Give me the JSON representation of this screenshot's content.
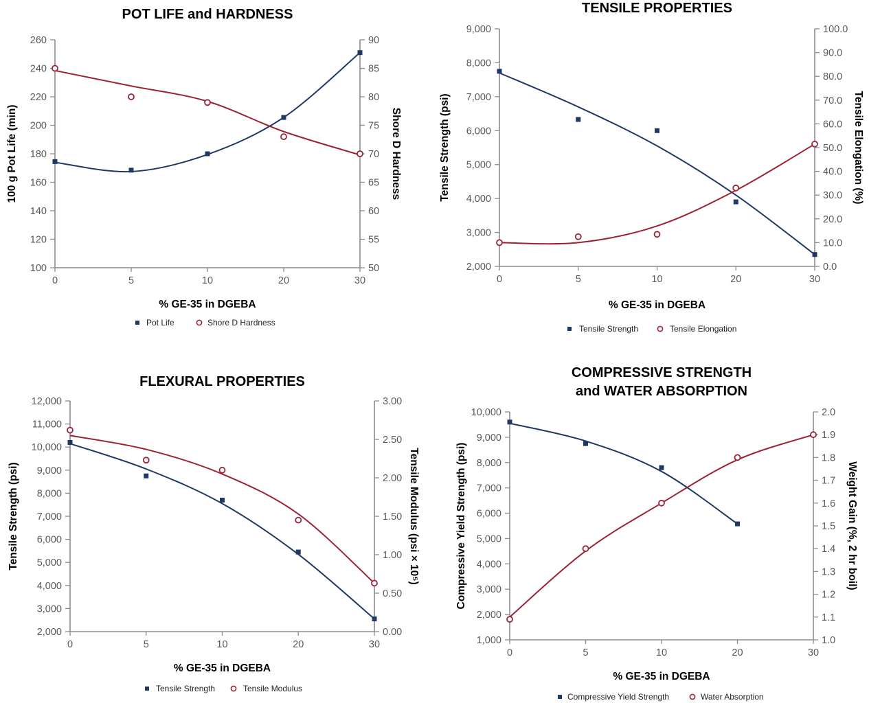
{
  "colors": {
    "series1": "#1f3864",
    "series2": "#9b2335",
    "axis": "#8c8c8c",
    "tick_text": "#595959"
  },
  "chart_data": [
    {
      "type": "scatter",
      "title": [
        "POT LIFE and HARDNESS"
      ],
      "xlabel": "% GE-35 in DGEBA",
      "x_ticks": [
        "0",
        "5",
        "10",
        "20",
        "30"
      ],
      "x": [
        "0",
        "5",
        "10",
        "20",
        "30"
      ],
      "y_left": {
        "label": "100 g Pot Life (min)",
        "ticks": [
          "100",
          "120",
          "140",
          "160",
          "180",
          "200",
          "220",
          "240",
          "260"
        ],
        "range": [
          100,
          260
        ]
      },
      "y_right": {
        "label": "Shore D Hardness",
        "ticks": [
          "50",
          "55",
          "60",
          "65",
          "70",
          "75",
          "80",
          "85",
          "90"
        ],
        "range": [
          50,
          90
        ]
      },
      "series": [
        {
          "name": "Pot Life",
          "axis": "left",
          "marker": "square",
          "values": [
            174.5,
            168.5,
            180,
            205.5,
            251
          ],
          "fit": [
            174,
            167.5,
            179.5,
            205.5,
            251
          ]
        },
        {
          "name": "Shore D Hardness",
          "axis": "right",
          "marker": "circle",
          "values": [
            85,
            80,
            79,
            73,
            70
          ],
          "fit": [
            84.6,
            81.9,
            79.2,
            73.9,
            69.8
          ]
        }
      ],
      "grid": false,
      "legend_position": "bottom"
    },
    {
      "type": "scatter",
      "title": [
        "TENSILE PROPERTIES"
      ],
      "xlabel": "% GE-35 in DGEBA",
      "x_ticks": [
        "0",
        "5",
        "10",
        "20",
        "30"
      ],
      "x": [
        "0",
        "5",
        "10",
        "20",
        "30"
      ],
      "y_left": {
        "label": "Tensile Strength (psi)",
        "ticks": [
          "2,000",
          "3,000",
          "4,000",
          "5,000",
          "6,000",
          "7,000",
          "8,000",
          "9,000"
        ],
        "range": [
          2000,
          9000
        ]
      },
      "y_right": {
        "label": "Tensile Elongation (%)",
        "ticks": [
          "0.0",
          "10.0",
          "20.0",
          "30.0",
          "40.0",
          "50.0",
          "60.0",
          "70.0",
          "80.0",
          "90.0",
          "100.0"
        ],
        "range": [
          0,
          100
        ]
      },
      "series": [
        {
          "name": "Tensile Strength",
          "axis": "left",
          "marker": "square",
          "values": [
            7750,
            6330,
            6000,
            3900,
            2350
          ],
          "fit": [
            7700,
            6700,
            5550,
            4100,
            2350
          ]
        },
        {
          "name": "Tensile Elongation",
          "axis": "right",
          "marker": "circle",
          "values": [
            10,
            12.5,
            13.5,
            33,
            51.5
          ],
          "fit": [
            10,
            10,
            17,
            32,
            51.5
          ]
        }
      ],
      "grid": false,
      "legend_position": "bottom"
    },
    {
      "type": "scatter",
      "title": [
        "FLEXURAL PROPERTIES"
      ],
      "xlabel": "% GE-35 in DGEBA",
      "x_ticks": [
        "0",
        "5",
        "10",
        "20",
        "30"
      ],
      "x": [
        "0",
        "5",
        "10",
        "20",
        "30"
      ],
      "y_left": {
        "label": "Tensile Strength (psi)",
        "ticks": [
          "2,000",
          "3,000",
          "4,000",
          "5,000",
          "6,000",
          "7,000",
          "8,000",
          "9,000",
          "10,000",
          "11,000",
          "12,000"
        ],
        "range": [
          2000,
          12000
        ]
      },
      "y_right": {
        "label": "Tensile Modulus (psi × 10⁵)",
        "ticks": [
          "0.00",
          "0.50",
          "1.00",
          "1.50",
          "2.00",
          "2.50",
          "3.00"
        ],
        "range": [
          0,
          3
        ]
      },
      "series": [
        {
          "name": "Tensile Strength",
          "axis": "left",
          "marker": "square",
          "values": [
            10200,
            8750,
            7700,
            5450,
            2550
          ],
          "fit": [
            10150,
            9050,
            7550,
            5350,
            2550
          ]
        },
        {
          "name": "Tensile Modulus",
          "axis": "right",
          "marker": "circle",
          "values": [
            2.62,
            2.23,
            2.1,
            1.45,
            0.63
          ],
          "fit": [
            2.55,
            2.37,
            2.05,
            1.53,
            0.63
          ]
        }
      ],
      "grid": false,
      "legend_position": "bottom"
    },
    {
      "type": "scatter",
      "title": [
        "COMPRESSIVE STRENGTH",
        "and WATER ABSORPTION"
      ],
      "xlabel": "% GE-35 in DGEBA",
      "x_ticks": [
        "0",
        "5",
        "10",
        "20",
        "30"
      ],
      "x": [
        "0",
        "5",
        "10",
        "20",
        "30"
      ],
      "y_left": {
        "label": "Compressive Yield Strength (psi)",
        "ticks": [
          "1,000",
          "2,000",
          "3,000",
          "4,000",
          "5,000",
          "6,000",
          "7,000",
          "8,000",
          "9,000",
          "10,000"
        ],
        "range": [
          1000,
          10000
        ]
      },
      "y_right": {
        "label": "Weight Gain (%, 2 hr boil)",
        "ticks": [
          "1.0",
          "1.1",
          "1.2",
          "1.3",
          "1.4",
          "1.5",
          "1.6",
          "1.7",
          "1.8",
          "1.9",
          "2.0"
        ],
        "range": [
          1,
          2
        ]
      },
      "series": [
        {
          "name": "Compressive Yield Strength",
          "axis": "left",
          "marker": "square",
          "values": [
            9600,
            8750,
            7800,
            5580,
            null
          ],
          "fit": [
            9550,
            8850,
            7650,
            5580,
            null
          ]
        },
        {
          "name": "Water Absorption",
          "axis": "right",
          "marker": "circle",
          "values": [
            1.09,
            1.4,
            1.6,
            1.8,
            1.9
          ],
          "fit": [
            1.1,
            1.39,
            1.6,
            1.79,
            1.9
          ]
        }
      ],
      "grid": false,
      "legend_position": "bottom"
    }
  ]
}
